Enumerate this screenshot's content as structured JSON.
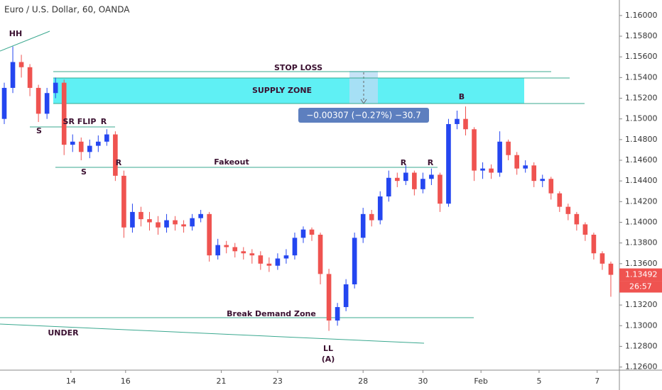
{
  "chart_data": {
    "type": "candlestick",
    "title": "Euro / U.S. Dollar, 60, OANDA",
    "up_color": "#2446f0",
    "down_color": "#ef5350",
    "xlim": [
      -0.5,
      72
    ],
    "ylim": [
      1.1257,
      1.1615
    ],
    "open": [
      1.15,
      1.153,
      1.1555,
      1.155,
      1.153,
      1.1505,
      1.1525,
      1.1535,
      1.1475,
      1.1478,
      1.1468,
      1.1474,
      1.1478,
      1.1485,
      1.1445,
      1.1395,
      1.141,
      1.1403,
      1.14,
      1.1395,
      1.1402,
      1.1398,
      1.1396,
      1.1404,
      1.1408,
      1.1368,
      1.1378,
      1.1376,
      1.1372,
      1.137,
      1.1368,
      1.136,
      1.1358,
      1.1365,
      1.1368,
      1.1385,
      1.1393,
      1.1388,
      1.135,
      1.1305,
      1.1318,
      1.134,
      1.1385,
      1.1408,
      1.1402,
      1.1425,
      1.1443,
      1.144,
      1.1448,
      1.1432,
      1.1442,
      1.1446,
      1.1418,
      1.1495,
      1.15,
      1.149,
      1.145,
      1.1452,
      1.1448,
      1.1478,
      1.1465,
      1.1452,
      1.1455,
      1.144,
      1.1442,
      1.1428,
      1.1415,
      1.1408,
      1.1398,
      1.1388,
      1.137,
      1.136
    ],
    "high": [
      1.1535,
      1.157,
      1.1562,
      1.1553,
      1.1533,
      1.153,
      1.154,
      1.1538,
      1.1485,
      1.1482,
      1.148,
      1.1484,
      1.149,
      1.1488,
      1.145,
      1.1418,
      1.1415,
      1.141,
      1.1406,
      1.1408,
      1.1406,
      1.1402,
      1.1408,
      1.1412,
      1.141,
      1.1384,
      1.1382,
      1.138,
      1.1376,
      1.1374,
      1.1372,
      1.1366,
      1.137,
      1.1374,
      1.139,
      1.1396,
      1.1395,
      1.139,
      1.1355,
      1.1322,
      1.1345,
      1.139,
      1.1414,
      1.1412,
      1.143,
      1.145,
      1.1448,
      1.1455,
      1.145,
      1.1448,
      1.1452,
      1.1448,
      1.15,
      1.1508,
      1.1512,
      1.1492,
      1.1458,
      1.1456,
      1.1488,
      1.148,
      1.1468,
      1.146,
      1.1458,
      1.1446,
      1.1444,
      1.143,
      1.1418,
      1.141,
      1.14,
      1.139,
      1.1372,
      1.1362
    ],
    "low": [
      1.1495,
      1.1525,
      1.154,
      1.1522,
      1.1497,
      1.15,
      1.152,
      1.1465,
      1.1468,
      1.146,
      1.1462,
      1.1468,
      1.1474,
      1.144,
      1.1385,
      1.139,
      1.1396,
      1.1392,
      1.1388,
      1.139,
      1.1392,
      1.139,
      1.1392,
      1.14,
      1.1362,
      1.1364,
      1.137,
      1.1366,
      1.1364,
      1.136,
      1.1354,
      1.1352,
      1.1354,
      1.136,
      1.1364,
      1.138,
      1.1382,
      1.134,
      1.1295,
      1.13,
      1.1314,
      1.1336,
      1.138,
      1.1396,
      1.1398,
      1.142,
      1.1434,
      1.1436,
      1.1426,
      1.1428,
      1.1436,
      1.141,
      1.1415,
      1.149,
      1.1484,
      1.144,
      1.1442,
      1.1442,
      1.1444,
      1.146,
      1.1446,
      1.1448,
      1.1434,
      1.1434,
      1.1422,
      1.141,
      1.1402,
      1.1392,
      1.1382,
      1.1364,
      1.1354,
      1.1328
    ],
    "close": [
      1.153,
      1.1555,
      1.155,
      1.153,
      1.1505,
      1.1525,
      1.1535,
      1.1475,
      1.1478,
      1.1468,
      1.1474,
      1.1478,
      1.1485,
      1.1445,
      1.1395,
      1.141,
      1.1403,
      1.14,
      1.1395,
      1.1402,
      1.1398,
      1.1396,
      1.1404,
      1.1408,
      1.1368,
      1.1378,
      1.1376,
      1.1372,
      1.137,
      1.1368,
      1.136,
      1.1358,
      1.1365,
      1.1368,
      1.1385,
      1.1393,
      1.1388,
      1.135,
      1.1305,
      1.1318,
      1.134,
      1.1385,
      1.1408,
      1.1402,
      1.1425,
      1.1443,
      1.144,
      1.1448,
      1.1432,
      1.1442,
      1.1446,
      1.1418,
      1.1495,
      1.15,
      1.149,
      1.145,
      1.1452,
      1.1448,
      1.1478,
      1.1465,
      1.1452,
      1.1455,
      1.144,
      1.1442,
      1.1428,
      1.1415,
      1.1408,
      1.1398,
      1.1388,
      1.137,
      1.136,
      1.13492
    ],
    "yticks": [
      {
        "value": 1.16,
        "label": "1.16000"
      },
      {
        "value": 1.158,
        "label": "1.15800"
      },
      {
        "value": 1.156,
        "label": "1.15600"
      },
      {
        "value": 1.154,
        "label": "1.15400"
      },
      {
        "value": 1.152,
        "label": "1.15200"
      },
      {
        "value": 1.15,
        "label": "1.15000"
      },
      {
        "value": 1.148,
        "label": "1.14800"
      },
      {
        "value": 1.146,
        "label": "1.14600"
      },
      {
        "value": 1.144,
        "label": "1.14400"
      },
      {
        "value": 1.142,
        "label": "1.14200"
      },
      {
        "value": 1.14,
        "label": "1.14000"
      },
      {
        "value": 1.138,
        "label": "1.13800"
      },
      {
        "value": 1.136,
        "label": "1.13600"
      },
      {
        "value": 1.132,
        "label": "1.13200"
      },
      {
        "value": 1.13,
        "label": "1.13000"
      },
      {
        "value": 1.128,
        "label": "1.12800"
      },
      {
        "value": 1.126,
        "label": "1.12600"
      }
    ],
    "xticks": [
      {
        "value": 7.8,
        "label": "14"
      },
      {
        "value": 14.2,
        "label": "16"
      },
      {
        "value": 25.4,
        "label": "21"
      },
      {
        "value": 32.0,
        "label": "23"
      },
      {
        "value": 42.0,
        "label": "28"
      },
      {
        "value": 49.0,
        "label": "30"
      },
      {
        "value": 55.8,
        "label": "Feb"
      },
      {
        "value": 62.6,
        "label": "5"
      },
      {
        "value": 69.4,
        "label": "7"
      }
    ],
    "last_price_label": "1.13492",
    "countdown": "26:57",
    "measure_label": "−0.00307 (−0.27%) −30.7",
    "annotations": [
      "HH",
      "S",
      "SR FLIP",
      "R",
      "S",
      "R",
      "Fakeout",
      "STOP LOSS",
      "SUPPLY ZONE",
      "B",
      "R",
      "R",
      "Break Demand Zone",
      "UNDER",
      "LL",
      "(A)"
    ]
  }
}
